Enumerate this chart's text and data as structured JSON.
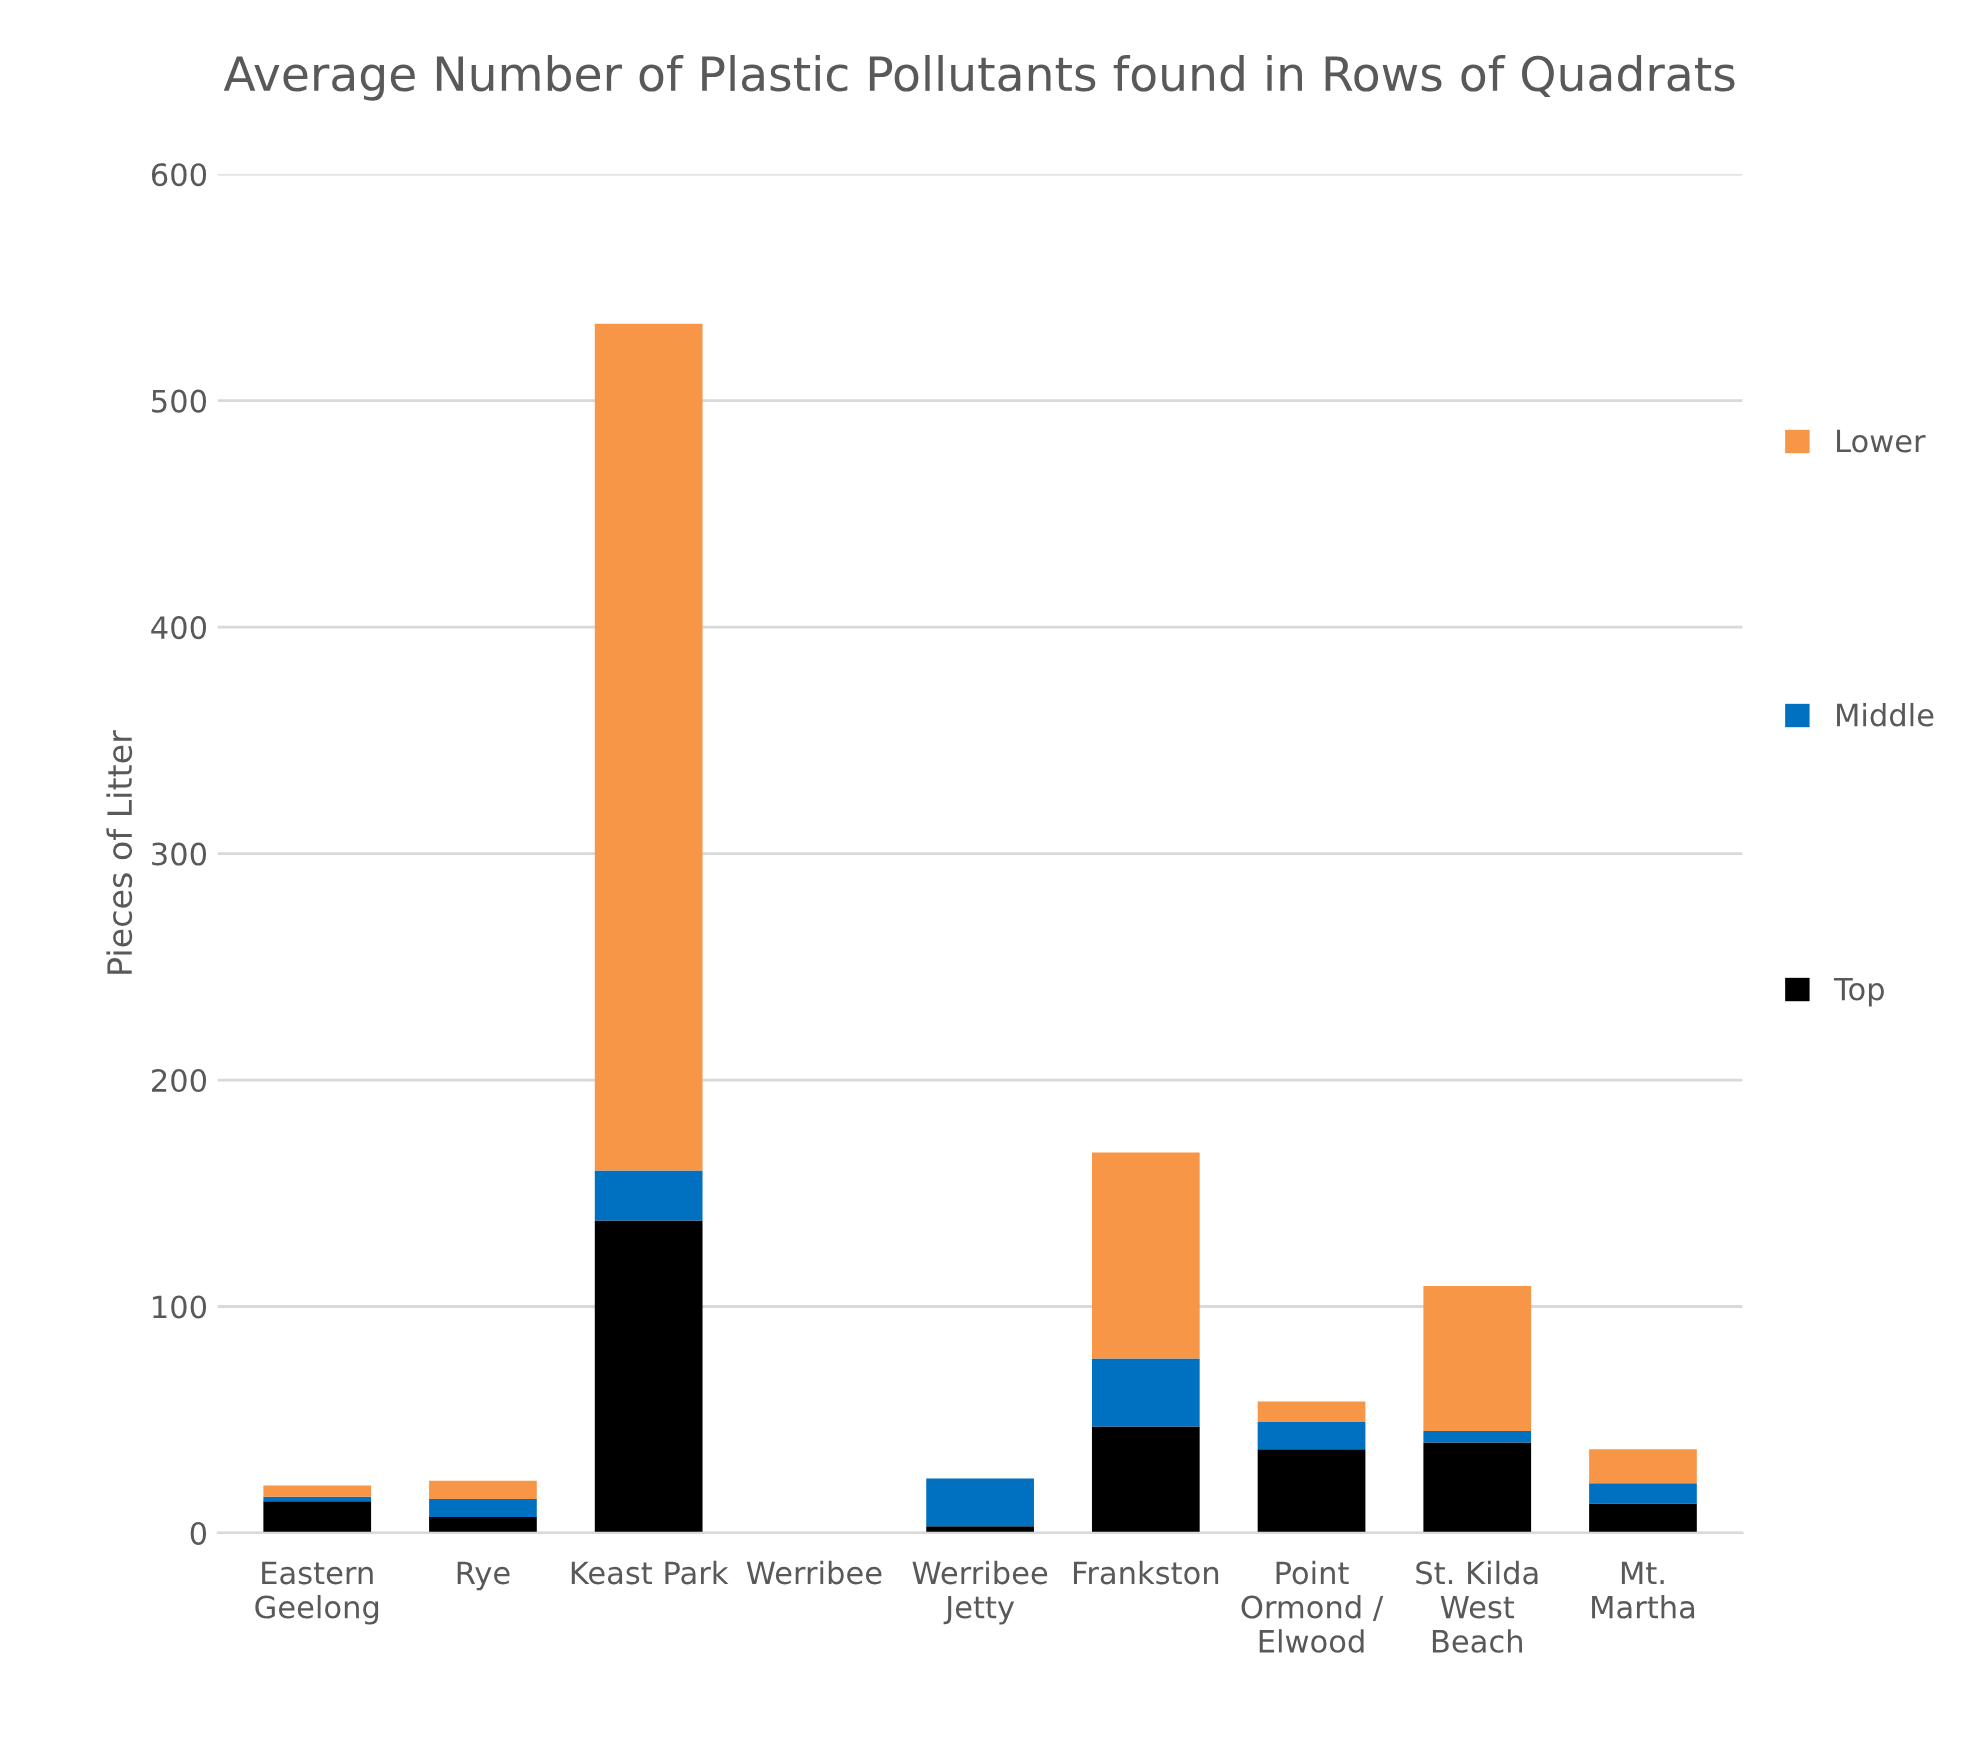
{
  "chart_data": {
    "type": "bar",
    "title": "Average Number of Plastic Pollutants found in Rows of Quadrats",
    "ylabel": "Pieces of Litter",
    "categories": [
      "Eastern\nGeelong",
      "Rye",
      "Keast Park",
      "Werribee",
      "Werribee\nJetty",
      "Frankston",
      "Point\nOrmond /\nElwood",
      "St. Kilda\nWest\nBeach",
      "Mt.\nMartha"
    ],
    "stacked": true,
    "series": [
      {
        "name": "Top",
        "color": "#000000",
        "values": [
          14,
          7,
          138,
          0,
          3,
          47,
          37,
          40,
          13
        ]
      },
      {
        "name": "Middle",
        "color": "#0070c0",
        "values": [
          2,
          8,
          22,
          0,
          21,
          30,
          12,
          5,
          9
        ]
      },
      {
        "name": "Lower",
        "color": "#f79646",
        "values": [
          5,
          8,
          374,
          0,
          0,
          91,
          9,
          64,
          15
        ]
      }
    ],
    "ylim": [
      0,
      600
    ],
    "yticks": [
      0,
      100,
      200,
      300,
      400,
      500,
      600
    ],
    "grid": "y",
    "legend": "right"
  }
}
